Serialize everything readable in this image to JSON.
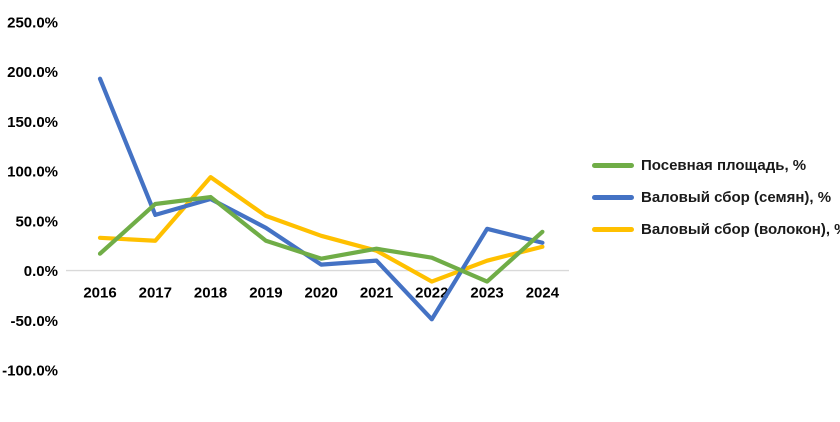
{
  "chart_data": {
    "type": "line",
    "title": "",
    "categories": [
      "2016",
      "2017",
      "2018",
      "2019",
      "2020",
      "2021",
      "2022",
      "2023",
      "2024"
    ],
    "series": [
      {
        "name": "Посевная площадь, %",
        "color": "#70AD47",
        "values": [
          17,
          67,
          74,
          30,
          12,
          22,
          13,
          -11,
          39
        ]
      },
      {
        "name": "Валовый сбор (семян), %",
        "color": "#4472C4",
        "values": [
          193,
          56,
          72,
          43,
          6,
          10,
          -49,
          42,
          28
        ]
      },
      {
        "name": "Валовый сбор (волокон), %",
        "color": "#FFC000",
        "values": [
          33,
          30,
          94,
          55,
          35,
          20,
          -11,
          10,
          24
        ]
      }
    ],
    "y_ticks": [
      {
        "label": "250.0%",
        "value": 250
      },
      {
        "label": "200.0%",
        "value": 200
      },
      {
        "label": "150.0%",
        "value": 150
      },
      {
        "label": "100.0%",
        "value": 100
      },
      {
        "label": "50.0%",
        "value": 50
      },
      {
        "label": "0.0%",
        "value": 0
      },
      {
        "label": "-50.0%",
        "value": -50
      },
      {
        "label": "-100.0%",
        "value": -100
      }
    ],
    "ylim": [
      -100,
      250
    ],
    "grid": false,
    "legend_position": "right",
    "axis_line_color": "#D9D9D9",
    "text_color": "#000000"
  }
}
